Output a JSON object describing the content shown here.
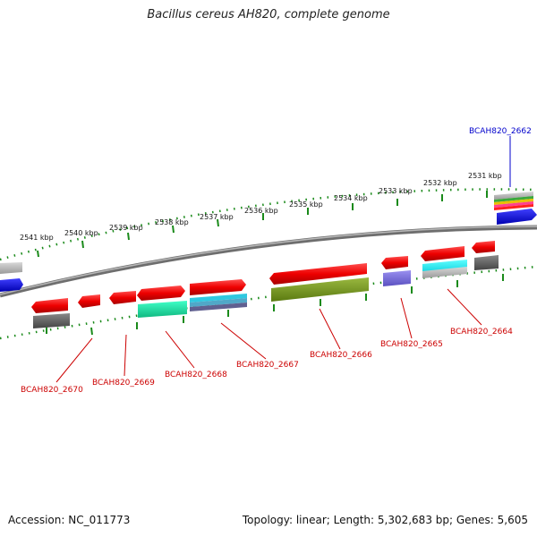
{
  "title": "Bacillus cereus AH820, complete genome",
  "footer": {
    "accession": "Accession: NC_011773",
    "summary": "Topology: linear; Length: 5,302,683 bp; Genes: 5,605"
  },
  "colors": {
    "tick": "#1a8a1a",
    "backbone": "#8c8c8c",
    "gene": "#e81010",
    "label_red": "#cc0000",
    "label_blue": "#0000cc"
  },
  "kbp_labels": [
    "2541 kbp",
    "2540 kbp",
    "2539 kbp",
    "2538 kbp",
    "2537 kbp",
    "2536 kbp",
    "2535 kbp",
    "2534 kbp",
    "2533 kbp",
    "2532 kbp",
    "2531 kbp"
  ],
  "gene_labels": [
    {
      "text": "BCAH820_2662",
      "color": "blue"
    },
    {
      "text": "BCAH820_2664",
      "color": "red"
    },
    {
      "text": "BCAH820_2665",
      "color": "red"
    },
    {
      "text": "BCAH820_2666",
      "color": "red"
    },
    {
      "text": "BCAH820_2667",
      "color": "red"
    },
    {
      "text": "BCAH820_2668",
      "color": "red"
    },
    {
      "text": "BCAH820_2669",
      "color": "red"
    },
    {
      "text": "BCAH820_2670",
      "color": "red"
    }
  ]
}
